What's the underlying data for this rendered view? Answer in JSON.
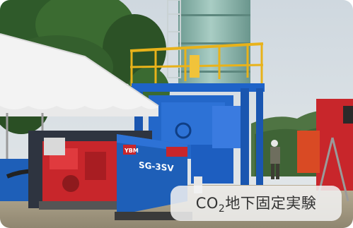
{
  "caption": {
    "prefix": "CO",
    "subscript": "2",
    "suffix": "地下固定実験"
  },
  "machine": {
    "brand": "YBM",
    "model": "SG-3SV"
  },
  "colors": {
    "sky": "#d6dde2",
    "frame_blue": "#1e63c8",
    "handrail_yellow": "#e8b21a",
    "tank_teal": "#8fb9b0",
    "pump_red": "#c8262b",
    "tent_white": "#f3f3f3"
  }
}
